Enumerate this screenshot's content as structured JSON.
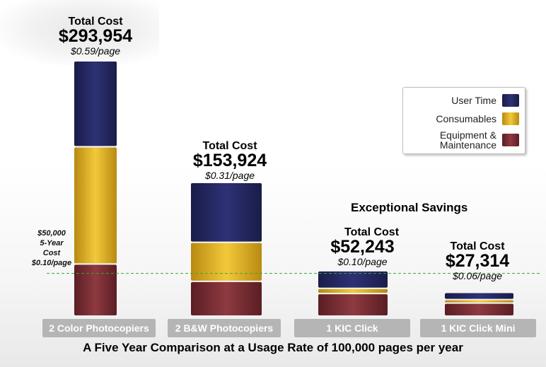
{
  "chart_data": {
    "type": "bar",
    "stacked": true,
    "categories": [
      "2 Color Photocopiers",
      "2 B&W Photocopiers",
      "1 KIC Click",
      "1 KIC Click Mini"
    ],
    "series": [
      {
        "name": "Equipment & Maintenance",
        "color": "#7a2c33",
        "values": [
          60000,
          40000,
          26000,
          15000
        ]
      },
      {
        "name": "Consumables",
        "color": "#e0b326",
        "values": [
          135000,
          45000,
          6000,
          4000
        ]
      },
      {
        "name": "User Time",
        "color": "#23265d",
        "values": [
          98954,
          68924,
          20243,
          8314
        ]
      }
    ],
    "totals": [
      {
        "label": "Total Cost",
        "amount": "$293,954",
        "per_page": "$0.59/page"
      },
      {
        "label": "Total Cost",
        "amount": "$153,924",
        "per_page": "$0.31/page"
      },
      {
        "label": "Total Cost",
        "amount": "$52,243",
        "per_page": "$0.10/page"
      },
      {
        "label": "Total Cost",
        "amount": "$27,314",
        "per_page": "$0.06/page"
      }
    ],
    "threshold": {
      "value": 50000,
      "label_lines": [
        "$50,000",
        "5-Year",
        "Cost",
        "$0.10/page"
      ],
      "color": "#3aa63a"
    },
    "annotation": "Exceptional Savings",
    "legend": [
      {
        "text": "User Time",
        "color": "#23265d"
      },
      {
        "text": "Consumables",
        "color": "#e0b326"
      },
      {
        "text": "Equipment & Maintenance",
        "color": "#7a2c33"
      }
    ],
    "legend_position": "top-right",
    "subtitle": "A Five Year Comparison at a Usage Rate of 100,000 pages per year",
    "grid": false
  }
}
